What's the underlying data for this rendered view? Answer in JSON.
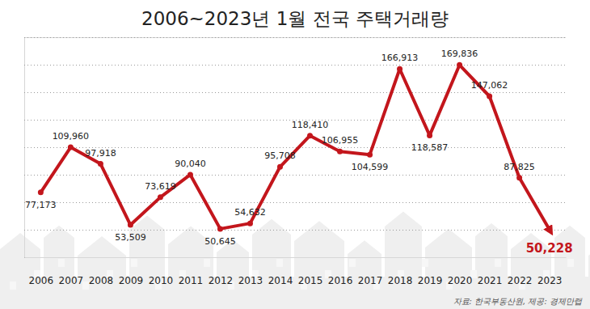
{
  "chart_data": {
    "type": "line",
    "title": "2006~2023년 1월 전국 주택거래량",
    "source": "자료: 한국부동산원, 제공: 경제만랩",
    "categories": [
      "2006",
      "2007",
      "2008",
      "2009",
      "2010",
      "2011",
      "2012",
      "2013",
      "2014",
      "2015",
      "2016",
      "2017",
      "2018",
      "2019",
      "2020",
      "2021",
      "2022",
      "2023"
    ],
    "values": [
      77173,
      109960,
      97918,
      53509,
      73619,
      90040,
      50645,
      54632,
      95708,
      118410,
      106955,
      104599,
      166913,
      118587,
      169836,
      147062,
      87825,
      50228
    ],
    "value_labels": [
      "77,173",
      "109,960",
      "97,918",
      "53,509",
      "73,619",
      "90,040",
      "50,645",
      "54,632",
      "95,708",
      "118,410",
      "106,955",
      "104,599",
      "166,913",
      "118,587",
      "169,836",
      "147,062",
      "87,825",
      "50,228"
    ],
    "color": "#c3161c",
    "ylim": [
      30000,
      190000
    ],
    "yticks": [
      30000,
      50000,
      70000,
      90000,
      110000,
      130000,
      150000,
      170000,
      190000
    ],
    "grid": true,
    "tick_labels": "x",
    "data_labels": true
  }
}
